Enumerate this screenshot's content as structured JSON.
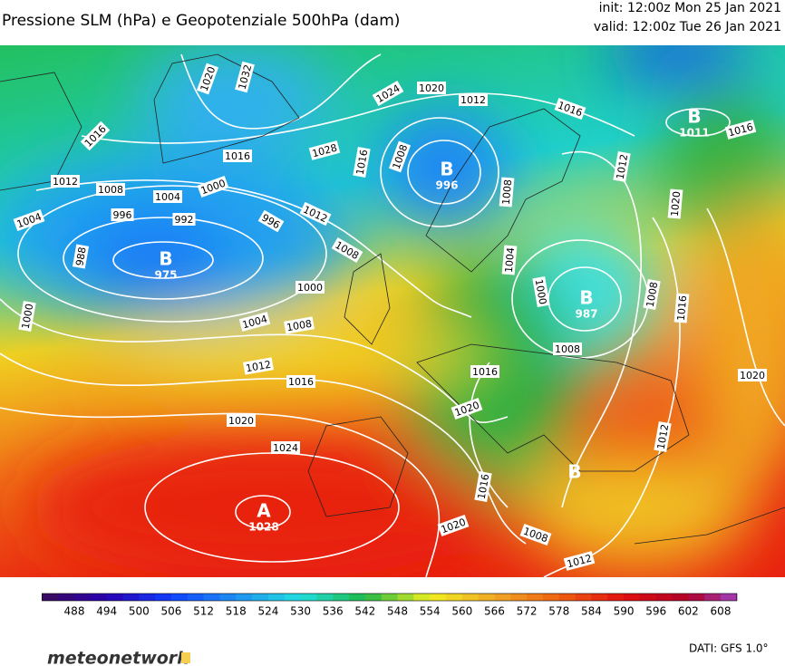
{
  "header": {
    "title": "Pressione SLM (hPa) e Geopotenziale 500hPa (dam)",
    "init": "init: 12:00z Mon 25 Jan 2021",
    "valid": "valid: 12:00z Tue 26 Jan 2021"
  },
  "isobar_labels": [
    "1020",
    "1032",
    "1016",
    "1012",
    "1008",
    "1004",
    "1000",
    "996",
    "992",
    "996",
    "988",
    "1004",
    "1000",
    "1016",
    "1028",
    "1016",
    "1008",
    "1024",
    "1020",
    "1012",
    "1016",
    "1012",
    "1020",
    "1016",
    "1012",
    "1008",
    "1000",
    "1004",
    "1008",
    "1012",
    "1016",
    "1020",
    "1024",
    "1008",
    "1004",
    "1000",
    "1008",
    "1008",
    "1016",
    "1016",
    "1020",
    "1020",
    "1012",
    "1016",
    "1020",
    "1008",
    "1012"
  ],
  "centers": [
    {
      "letter": "B",
      "value": "1011"
    },
    {
      "letter": "B",
      "value": "996"
    },
    {
      "letter": "B",
      "value": "975"
    },
    {
      "letter": "B",
      "value": "987"
    },
    {
      "letter": "A",
      "value": "1028"
    },
    {
      "letter": "B"
    }
  ],
  "colorbar": {
    "ticks": [
      488,
      494,
      500,
      506,
      512,
      518,
      524,
      530,
      536,
      542,
      548,
      554,
      560,
      566,
      572,
      578,
      584,
      590,
      596,
      602,
      608
    ],
    "range": [
      482,
      611
    ],
    "step": 3,
    "palette": [
      [
        482,
        "#3a0a5a"
      ],
      [
        494,
        "#2a00b0"
      ],
      [
        506,
        "#1040ff"
      ],
      [
        518,
        "#2090f0"
      ],
      [
        530,
        "#20e0e0"
      ],
      [
        542,
        "#20b848"
      ],
      [
        554,
        "#f0f020"
      ],
      [
        566,
        "#f0a828"
      ],
      [
        578,
        "#f06010"
      ],
      [
        590,
        "#e01010"
      ],
      [
        602,
        "#b00028"
      ],
      [
        611,
        "#a040c0"
      ]
    ]
  },
  "footer": {
    "logo": "meteonetwork",
    "source": "DATI: GFS 1.0°"
  }
}
